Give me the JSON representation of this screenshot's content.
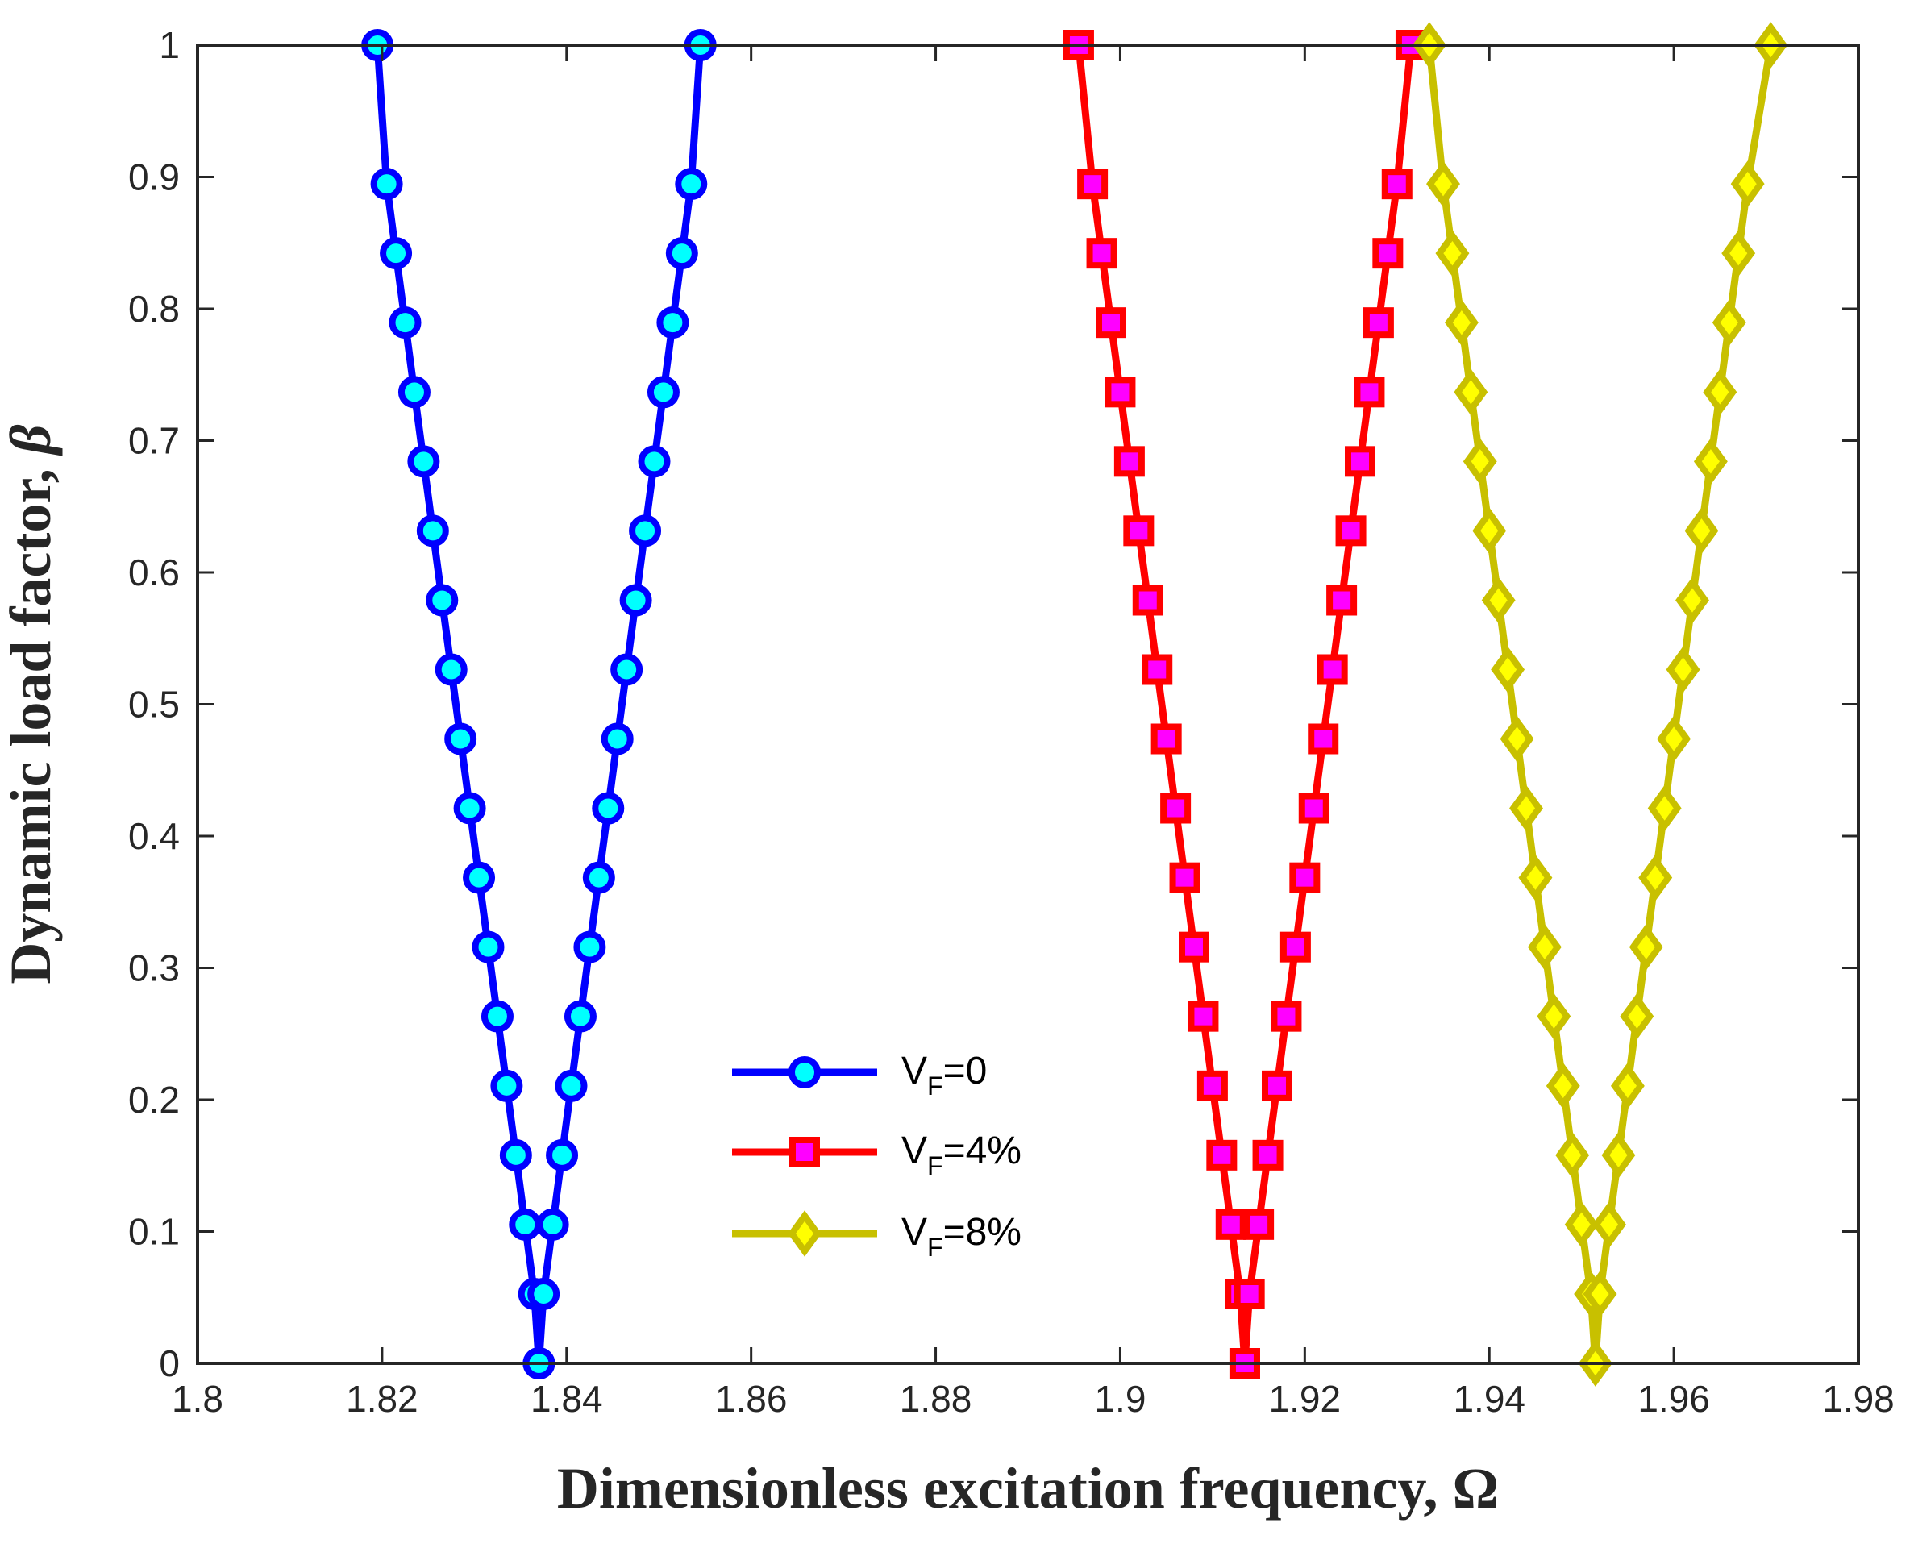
{
  "chart_data": {
    "type": "line",
    "title": "",
    "xlabel_text": "Dimensionless excitation frequency, ",
    "xlabel_symbol": "Ω",
    "ylabel_text": "Dynamic load factor, ",
    "ylabel_symbol": "β",
    "xlim": [
      1.8,
      1.98
    ],
    "ylim": [
      0,
      1
    ],
    "xticks": [
      1.8,
      1.82,
      1.84,
      1.86,
      1.88,
      1.9,
      1.92,
      1.94,
      1.96,
      1.98
    ],
    "xtick_labels": [
      "1.8",
      "1.82",
      "1.84",
      "1.86",
      "1.88",
      "1.9",
      "1.92",
      "1.94",
      "1.96",
      "1.98"
    ],
    "yticks": [
      0,
      0.1,
      0.2,
      0.3,
      0.4,
      0.5,
      0.6,
      0.7,
      0.8,
      0.9,
      1
    ],
    "ytick_labels": [
      "0",
      "0.1",
      "0.2",
      "0.3",
      "0.4",
      "0.5",
      "0.6",
      "0.7",
      "0.8",
      "0.9",
      "1"
    ],
    "grid": false,
    "legend_position": "center-bottom",
    "series": [
      {
        "name": "V_F=0",
        "legend_main": "V",
        "legend_sub": "F",
        "legend_tail": "=0",
        "color": "#0000ff",
        "marker": "circle",
        "marker_fill": "#00ffff",
        "left_x": [
          1.837,
          1.8365,
          1.8355,
          1.8345,
          1.8335,
          1.8325,
          1.8315,
          1.8305,
          1.8295,
          1.8285,
          1.8275,
          1.8265,
          1.8255,
          1.8245,
          1.8235,
          1.8225,
          1.8215,
          1.8205,
          1.8195
        ],
        "right_x": [
          1.837,
          1.8375,
          1.8385,
          1.8395,
          1.8405,
          1.8415,
          1.8425,
          1.8435,
          1.8445,
          1.8455,
          1.8465,
          1.8475,
          1.8485,
          1.8495,
          1.8505,
          1.8515,
          1.8525,
          1.8535,
          1.8545
        ],
        "y": [
          0,
          0.0526,
          0.1053,
          0.1579,
          0.2105,
          0.2632,
          0.3158,
          0.3684,
          0.4211,
          0.4737,
          0.5263,
          0.5789,
          0.6316,
          0.6842,
          0.7368,
          0.7895,
          0.8421,
          0.8947,
          1.0
        ]
      },
      {
        "name": "V_F=4%",
        "legend_main": "V",
        "legend_sub": "F",
        "legend_tail": "=4%",
        "color": "#ff0000",
        "marker": "square",
        "marker_fill": "#ff00ff",
        "left_x": [
          1.9135,
          1.913,
          1.912,
          1.911,
          1.91,
          1.909,
          1.908,
          1.907,
          1.906,
          1.905,
          1.904,
          1.903,
          1.902,
          1.901,
          1.9,
          1.899,
          1.898,
          1.897,
          1.8955
        ],
        "right_x": [
          1.9135,
          1.914,
          1.915,
          1.916,
          1.917,
          1.918,
          1.919,
          1.92,
          1.921,
          1.922,
          1.923,
          1.924,
          1.925,
          1.926,
          1.927,
          1.928,
          1.929,
          1.93,
          1.9315
        ],
        "y": [
          0,
          0.0526,
          0.1053,
          0.1579,
          0.2105,
          0.2632,
          0.3158,
          0.3684,
          0.4211,
          0.4737,
          0.5263,
          0.5789,
          0.6316,
          0.6842,
          0.7368,
          0.7895,
          0.8421,
          0.8947,
          1.0
        ]
      },
      {
        "name": "V_F=8%",
        "legend_main": "V",
        "legend_sub": "F",
        "legend_tail": "=8%",
        "color": "#c8c000",
        "marker": "diamond",
        "marker_fill": "#ffff00",
        "left_x": [
          1.9515,
          1.951,
          1.95,
          1.949,
          1.948,
          1.947,
          1.946,
          1.945,
          1.944,
          1.943,
          1.942,
          1.941,
          1.94,
          1.939,
          1.938,
          1.937,
          1.936,
          1.935,
          1.9335
        ],
        "right_x": [
          1.9515,
          1.952,
          1.953,
          1.954,
          1.955,
          1.956,
          1.957,
          1.958,
          1.959,
          1.96,
          1.961,
          1.962,
          1.963,
          1.964,
          1.965,
          1.966,
          1.967,
          1.968,
          1.9705
        ],
        "y": [
          0,
          0.0526,
          0.1053,
          0.1579,
          0.2105,
          0.2632,
          0.3158,
          0.3684,
          0.4211,
          0.4737,
          0.5263,
          0.5789,
          0.6316,
          0.6842,
          0.7368,
          0.7895,
          0.8421,
          0.8947,
          1.0
        ]
      }
    ]
  }
}
